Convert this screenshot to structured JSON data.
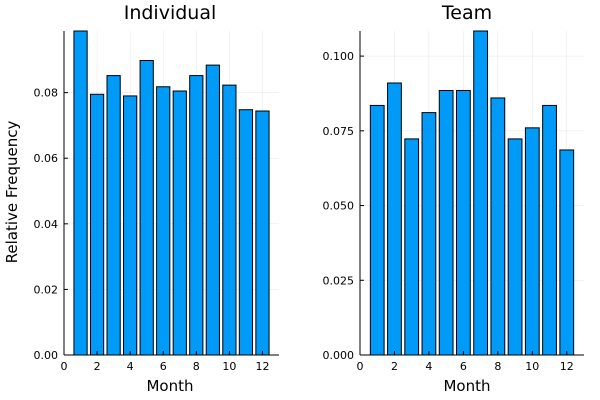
{
  "figure": {
    "ylabel": "Relative Frequency",
    "bar_color": "#009af9",
    "edge_color": "#000000"
  },
  "chart_data": [
    {
      "type": "bar",
      "title": "Individual",
      "xlabel": "Month",
      "ylabel": "Relative Frequency",
      "xlim": [
        0,
        13
      ],
      "ylim": [
        0,
        0.0988
      ],
      "xticks": [
        0,
        2,
        4,
        6,
        8,
        10,
        12
      ],
      "yticks": [
        0,
        0.02,
        0.04,
        0.06,
        0.08
      ],
      "ytick_labels": [
        "0.00",
        "0.02",
        "0.04",
        "0.06",
        "0.08"
      ],
      "categories": [
        1,
        2,
        3,
        4,
        5,
        6,
        7,
        8,
        9,
        10,
        11,
        12
      ],
      "values": [
        0.0988,
        0.0795,
        0.0852,
        0.079,
        0.0898,
        0.0818,
        0.0805,
        0.0852,
        0.0884,
        0.0823,
        0.0748,
        0.0744
      ],
      "grid": true,
      "legend": false
    },
    {
      "type": "bar",
      "title": "Team",
      "xlabel": "Month",
      "ylabel": "",
      "xlim": [
        0,
        13
      ],
      "ylim": [
        0,
        0.1084
      ],
      "xticks": [
        0,
        2,
        4,
        6,
        8,
        10,
        12
      ],
      "yticks": [
        0,
        0.025,
        0.05,
        0.075,
        0.1
      ],
      "ytick_labels": [
        "0.000",
        "0.025",
        "0.050",
        "0.075",
        "0.100"
      ],
      "categories": [
        1,
        2,
        3,
        4,
        5,
        6,
        7,
        8,
        9,
        10,
        11,
        12
      ],
      "values": [
        0.0835,
        0.091,
        0.0723,
        0.0811,
        0.0885,
        0.0885,
        0.1084,
        0.086,
        0.0723,
        0.076,
        0.0835,
        0.0686
      ],
      "grid": true,
      "legend": false
    }
  ]
}
